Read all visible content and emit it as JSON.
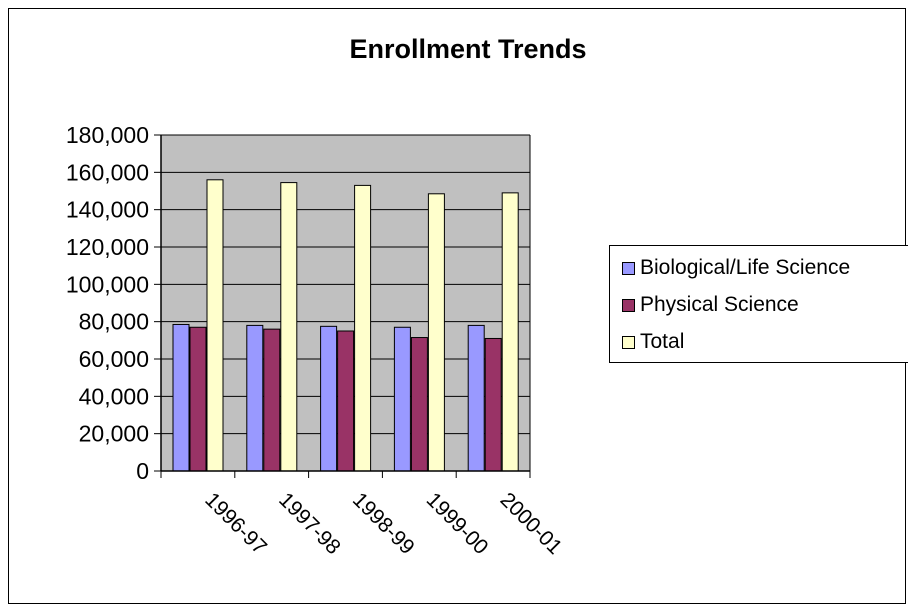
{
  "chart_data": {
    "type": "bar",
    "title": "Enrollment Trends",
    "xlabel": "",
    "ylabel": "",
    "categories": [
      "1996-97",
      "1997-98",
      "1998-99",
      "1999-00",
      "2000-01"
    ],
    "series": [
      {
        "name": "Biological/Life Science",
        "color": "#9999ff",
        "values": [
          78500,
          78000,
          77500,
          77000,
          78000
        ]
      },
      {
        "name": "Physical Science",
        "color": "#993366",
        "values": [
          77000,
          76000,
          75000,
          71500,
          71000
        ]
      },
      {
        "name": "Total",
        "color": "#ffffcc",
        "values": [
          156000,
          154500,
          153000,
          148500,
          149000
        ]
      }
    ],
    "ylim": [
      0,
      180000
    ],
    "yticks": [
      0,
      20000,
      40000,
      60000,
      80000,
      100000,
      120000,
      140000,
      160000,
      180000
    ],
    "ytick_labels": [
      "0",
      "20,000",
      "40,000",
      "60,000",
      "80,000",
      "100,000",
      "120,000",
      "140,000",
      "160,000",
      "180,000"
    ],
    "plot_background": "#c0c0c0",
    "grid": true,
    "legend_position": "right"
  }
}
